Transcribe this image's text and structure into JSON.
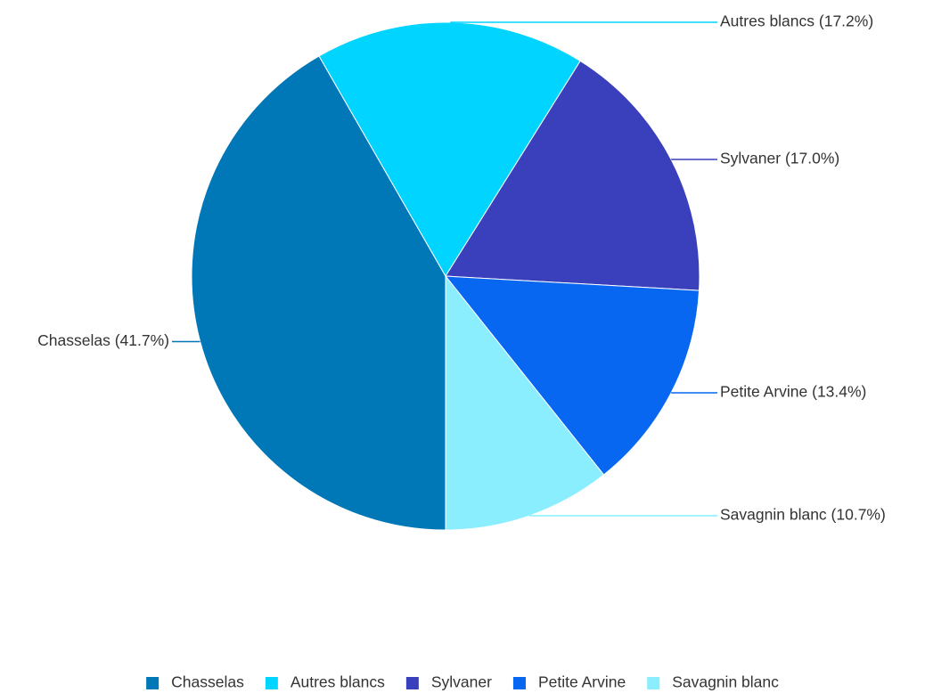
{
  "chart_data": {
    "type": "pie",
    "categories": [
      "Chasselas",
      "Autres blancs",
      "Sylvaner",
      "Petite Arvine",
      "Savagnin blanc"
    ],
    "values": [
      41.7,
      17.2,
      17.0,
      13.4,
      10.7
    ],
    "value_labels": [
      "Chasselas (41.7%)",
      "Autres blancs (17.2%)",
      "Sylvaner (17.0%)",
      "Petite Arvine (13.4%)",
      "Savagnin blanc (10.7%)"
    ],
    "colors": [
      "#0077b6",
      "#00d4ff",
      "#3a3fbb",
      "#0767f0",
      "#8aeeff"
    ],
    "legend": "bottom"
  }
}
